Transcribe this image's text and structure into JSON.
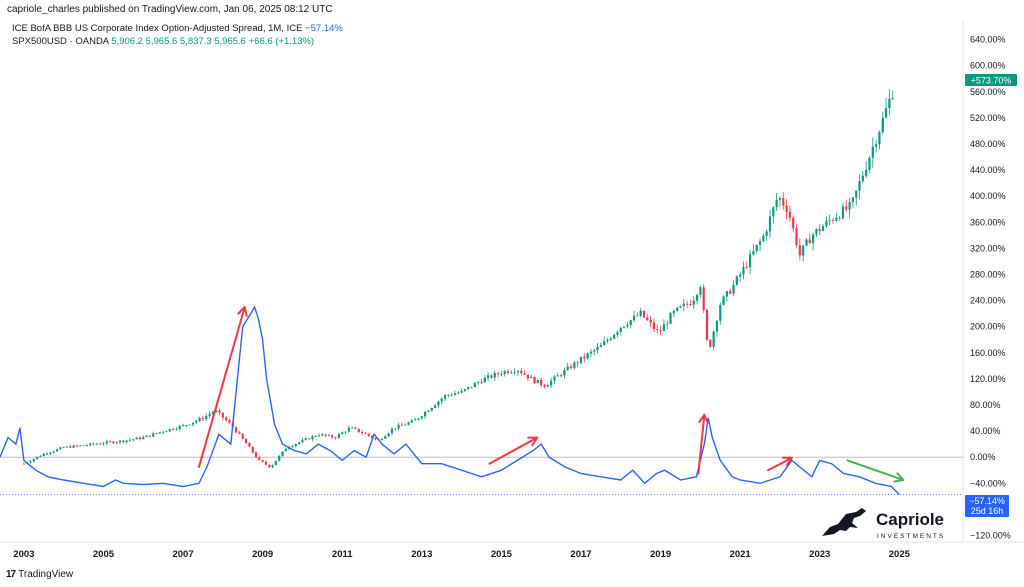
{
  "header": {
    "published": "capriole_charles published on TradingView.com, Jan 06, 2025 08:12 UTC"
  },
  "legend": {
    "series1": {
      "name": "ICE BofA BBB US Corporate Index Option-Adjusted Spread, 1M, ICE",
      "change": "−57.14%"
    },
    "series2": {
      "name": "SPX500USD · OANDA",
      "ohlc": "5,906.2  5,965.6  5,837.3  5,965.6  +66.6 (+1.13%)"
    }
  },
  "footer": {
    "brand": "TradingView",
    "logo_icon": "tradingview-logo-icon"
  },
  "watermark": {
    "name": "Capriole",
    "tagline": "INVESTMENTS",
    "icon": "jumping-horse-logo-icon"
  },
  "badges": {
    "spx": {
      "text": "+573.70%",
      "color": "#089981"
    },
    "spread": {
      "text": "−57.14%",
      "sub": "25d 16h",
      "color": "#2962ff"
    }
  },
  "chart_data": {
    "type": "line",
    "ylabel_unit": "%",
    "ylim": [
      -130,
      670
    ],
    "xlim": [
      2002.4,
      2026.6
    ],
    "x_ticks": [
      "2003",
      "2005",
      "2007",
      "2009",
      "2011",
      "2013",
      "2015",
      "2017",
      "2019",
      "2021",
      "2023",
      "2025"
    ],
    "y_ticks": [
      "640.00%",
      "600.00%",
      "560.00%",
      "520.00%",
      "480.00%",
      "440.00%",
      "400.00%",
      "360.00%",
      "320.00%",
      "280.00%",
      "240.00%",
      "200.00%",
      "160.00%",
      "120.00%",
      "80.00%",
      "40.00%",
      "0.00%",
      "−40.00%",
      "−80.00%",
      "−120.00%"
    ],
    "grid": false,
    "colors": {
      "up": "#089981",
      "down": "#f23645",
      "spread_line": "#2962ff",
      "arrow_red": "#f23645",
      "arrow_green": "#4caf50"
    },
    "series": [
      {
        "name": "ICE BofA BBB US Corporate Index Option-Adjusted Spread",
        "style": "line",
        "x": [
          2002.4,
          2002.6,
          2002.8,
          2002.9,
          2003.0,
          2003.3,
          2003.6,
          2004.0,
          2004.5,
          2005.0,
          2005.3,
          2005.5,
          2006.0,
          2006.5,
          2007.0,
          2007.4,
          2007.6,
          2007.9,
          2008.2,
          2008.5,
          2008.8,
          2008.9,
          2009.0,
          2009.1,
          2009.3,
          2009.5,
          2009.8,
          2010.1,
          2010.4,
          2010.7,
          2011.0,
          2011.3,
          2011.6,
          2011.8,
          2012.0,
          2012.3,
          2012.6,
          2013.0,
          2013.5,
          2014.0,
          2014.5,
          2015.0,
          2015.4,
          2015.8,
          2016.0,
          2016.2,
          2016.6,
          2017.0,
          2017.5,
          2018.0,
          2018.3,
          2018.6,
          2018.9,
          2019.1,
          2019.5,
          2019.9,
          2020.1,
          2020.2,
          2020.3,
          2020.5,
          2020.8,
          2021.0,
          2021.5,
          2022.0,
          2022.3,
          2022.5,
          2022.8,
          2023.0,
          2023.3,
          2023.6,
          2024.0,
          2024.4,
          2024.8,
          2025.0
        ],
        "y": [
          0,
          30,
          20,
          45,
          -5,
          -20,
          -30,
          -35,
          -40,
          -45,
          -35,
          -40,
          -42,
          -40,
          -45,
          -40,
          -15,
          35,
          20,
          200,
          230,
          210,
          180,
          120,
          50,
          20,
          10,
          5,
          20,
          10,
          -5,
          10,
          0,
          35,
          20,
          5,
          20,
          -10,
          -10,
          -20,
          -30,
          -20,
          -5,
          10,
          20,
          0,
          -15,
          -25,
          -30,
          -35,
          -20,
          -40,
          -25,
          -20,
          -35,
          -30,
          20,
          60,
          30,
          -5,
          -30,
          -35,
          -40,
          -30,
          -5,
          -15,
          -30,
          -5,
          -10,
          -25,
          -30,
          -40,
          -45,
          -57
        ]
      },
      {
        "name": "SPX500USD · OANDA",
        "style": "candlestick",
        "x": [
          2003.0,
          2003.5,
          2004.0,
          2004.5,
          2005.0,
          2005.5,
          2006.0,
          2006.5,
          2007.0,
          2007.5,
          2007.8,
          2008.2,
          2008.6,
          2008.9,
          2009.2,
          2009.6,
          2010.0,
          2010.4,
          2010.8,
          2011.2,
          2011.6,
          2011.9,
          2012.3,
          2012.8,
          2013.2,
          2013.6,
          2014.0,
          2014.5,
          2015.0,
          2015.4,
          2015.8,
          2016.1,
          2016.5,
          2017.0,
          2017.5,
          2018.0,
          2018.5,
          2018.95,
          2019.3,
          2019.8,
          2020.0,
          2020.2,
          2020.5,
          2020.8,
          2021.2,
          2021.6,
          2021.95,
          2022.2,
          2022.5,
          2022.8,
          2023.0,
          2023.4,
          2023.8,
          2024.0,
          2024.3,
          2024.6,
          2024.9
        ],
        "y": [
          -10,
          5,
          15,
          18,
          22,
          25,
          30,
          40,
          48,
          60,
          72,
          50,
          20,
          -5,
          -15,
          15,
          25,
          35,
          30,
          45,
          35,
          25,
          45,
          55,
          75,
          95,
          100,
          118,
          130,
          135,
          118,
          110,
          128,
          150,
          170,
          200,
          220,
          190,
          220,
          240,
          265,
          160,
          235,
          260,
          300,
          340,
          400,
          380,
          310,
          340,
          350,
          370,
          385,
          420,
          470,
          520,
          573
        ]
      }
    ],
    "annotations": [
      {
        "type": "arrow",
        "color": "red",
        "from": [
          2007.4,
          -15
        ],
        "to": [
          2008.55,
          230
        ]
      },
      {
        "type": "arrow",
        "color": "red",
        "from": [
          2014.7,
          -10
        ],
        "to": [
          2015.9,
          30
        ]
      },
      {
        "type": "arrow",
        "color": "red",
        "from": [
          2019.95,
          -25
        ],
        "to": [
          2020.1,
          65
        ]
      },
      {
        "type": "arrow",
        "color": "red",
        "from": [
          2021.7,
          -20
        ],
        "to": [
          2022.3,
          -1
        ]
      },
      {
        "type": "arrow",
        "color": "green",
        "from": [
          2023.7,
          -5
        ],
        "to": [
          2025.1,
          -35
        ]
      }
    ]
  }
}
